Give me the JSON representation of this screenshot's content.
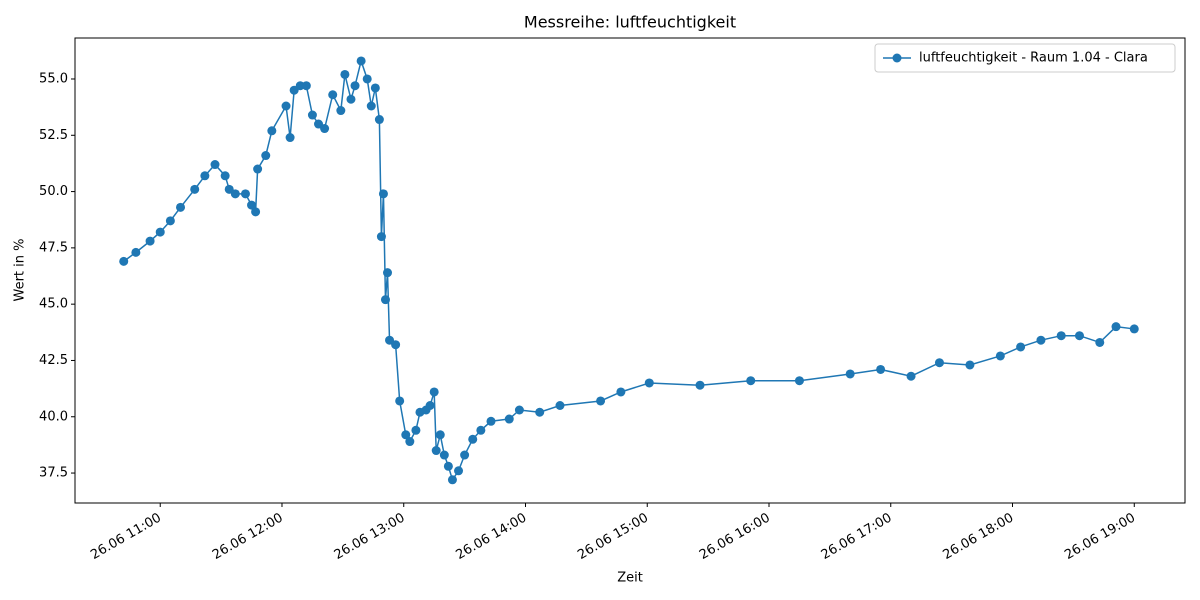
{
  "chart_data": {
    "type": "line",
    "title": "Messreihe: luftfeuchtigkeit",
    "x_label": "Zeit",
    "y_label": "Wert in %",
    "x": [
      "26.06 10:42",
      "26.06 10:48",
      "26.06 10:55",
      "26.06 11:00",
      "26.06 11:05",
      "26.06 11:10",
      "26.06 11:17",
      "26.06 11:22",
      "26.06 11:27",
      "26.06 11:32",
      "26.06 11:34",
      "26.06 11:37",
      "26.06 11:42",
      "26.06 11:45",
      "26.06 11:47",
      "26.06 11:48",
      "26.06 11:52",
      "26.06 11:55",
      "26.06 12:02",
      "26.06 12:04",
      "26.06 12:06",
      "26.06 12:09",
      "26.06 12:12",
      "26.06 12:15",
      "26.06 12:18",
      "26.06 12:21",
      "26.06 12:25",
      "26.06 12:29",
      "26.06 12:31",
      "26.06 12:34",
      "26.06 12:36",
      "26.06 12:39",
      "26.06 12:42",
      "26.06 12:44",
      "26.06 12:46",
      "26.06 12:48",
      "26.06 12:49",
      "26.06 12:50",
      "26.06 12:51",
      "26.06 12:52",
      "26.06 12:53",
      "26.06 12:56",
      "26.06 12:58",
      "26.06 13:01",
      "26.06 13:03",
      "26.06 13:06",
      "26.06 13:08",
      "26.06 13:11",
      "26.06 13:13",
      "26.06 13:15",
      "26.06 13:16",
      "26.06 13:18",
      "26.06 13:20",
      "26.06 13:22",
      "26.06 13:24",
      "26.06 13:27",
      "26.06 13:30",
      "26.06 13:34",
      "26.06 13:38",
      "26.06 13:43",
      "26.06 13:52",
      "26.06 13:57",
      "26.06 14:07",
      "26.06 14:17",
      "26.06 14:37",
      "26.06 14:47",
      "26.06 15:01",
      "26.06 15:26",
      "26.06 15:51",
      "26.06 16:15",
      "26.06 16:40",
      "26.06 16:55",
      "26.06 17:10",
      "26.06 17:24",
      "26.06 17:39",
      "26.06 17:54",
      "26.06 18:04",
      "26.06 18:14",
      "26.06 18:24",
      "26.06 18:33",
      "26.06 18:43",
      "26.06 18:51",
      "26.06 19:00"
    ],
    "series": [
      {
        "name": "luftfeuchtigkeit - Raum 1.04 - Clara",
        "color": "#1f77b4",
        "values": [
          46.9,
          47.3,
          47.8,
          48.2,
          48.7,
          49.3,
          50.1,
          50.7,
          51.2,
          50.7,
          50.1,
          49.9,
          49.9,
          49.4,
          49.1,
          51.0,
          51.6,
          52.7,
          53.8,
          52.4,
          54.5,
          54.7,
          54.7,
          53.4,
          53.0,
          52.8,
          54.3,
          53.6,
          55.2,
          54.1,
          54.7,
          55.8,
          55.0,
          53.8,
          54.6,
          53.2,
          48.0,
          49.9,
          45.2,
          46.4,
          43.4,
          43.2,
          40.7,
          39.2,
          38.9,
          39.4,
          40.2,
          40.3,
          40.5,
          41.1,
          38.5,
          39.2,
          38.3,
          37.8,
          37.2,
          37.6,
          38.3,
          39.0,
          39.4,
          39.8,
          39.9,
          40.3,
          40.2,
          40.5,
          40.7,
          41.1,
          41.5,
          41.4,
          41.6,
          41.6,
          41.9,
          42.1,
          41.8,
          42.4,
          42.3,
          42.7,
          43.1,
          43.4,
          43.6,
          43.6,
          43.3,
          44.0,
          43.9
        ]
      }
    ],
    "xlim": [
      "26.06 10:18",
      "26.06 19:25"
    ],
    "xticks": [
      "26.06 11:00",
      "26.06 12:00",
      "26.06 13:00",
      "26.06 14:00",
      "26.06 15:00",
      "26.06 16:00",
      "26.06 17:00",
      "26.06 18:00",
      "26.06 19:00"
    ],
    "ylim": [
      36.17,
      56.82
    ],
    "yticks": [
      37.5,
      {
        "value": 40,
        "label": "40.0"
      },
      42.5,
      {
        "value": 45,
        "label": "45.0"
      },
      47.5,
      {
        "value": 50,
        "label": "50.0"
      },
      52.5,
      {
        "value": 55,
        "label": "55.0"
      }
    ],
    "grid": false,
    "legend": "upper right"
  }
}
